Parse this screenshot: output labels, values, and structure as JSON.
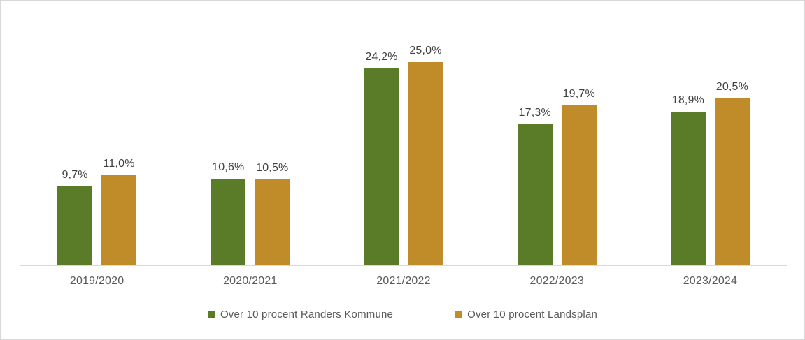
{
  "chart_data": {
    "type": "bar",
    "title": "",
    "xlabel": "",
    "ylabel": "",
    "categories": [
      "2019/2020",
      "2020/2021",
      "2021/2022",
      "2022/2023",
      "2023/2024"
    ],
    "series": [
      {
        "name": "Over 10 procent Randers Kommune",
        "color": "#5a7b28",
        "values": [
          9.7,
          10.6,
          24.2,
          17.3,
          18.9
        ],
        "labels": [
          "9,7%",
          "10,6%",
          "24,2%",
          "17,3%",
          "18,9%"
        ]
      },
      {
        "name": "Over 10 procent Landsplan",
        "color": "#bf8c29",
        "values": [
          11.0,
          10.5,
          25.0,
          19.7,
          20.5
        ],
        "labels": [
          "11,0%",
          "10,5%",
          "25,0%",
          "19,7%",
          "20,5%"
        ]
      }
    ],
    "ylim": [
      0,
      30
    ],
    "grid": false,
    "y_axis_visible": false,
    "legend_position": "bottom",
    "colors": {
      "axis_line": "#d9d9d9",
      "bar_value_label": "#404040",
      "tick_label": "#595959",
      "legend_label": "#595959",
      "frame_border": "#d8d8d8",
      "background": "#ffffff"
    }
  }
}
